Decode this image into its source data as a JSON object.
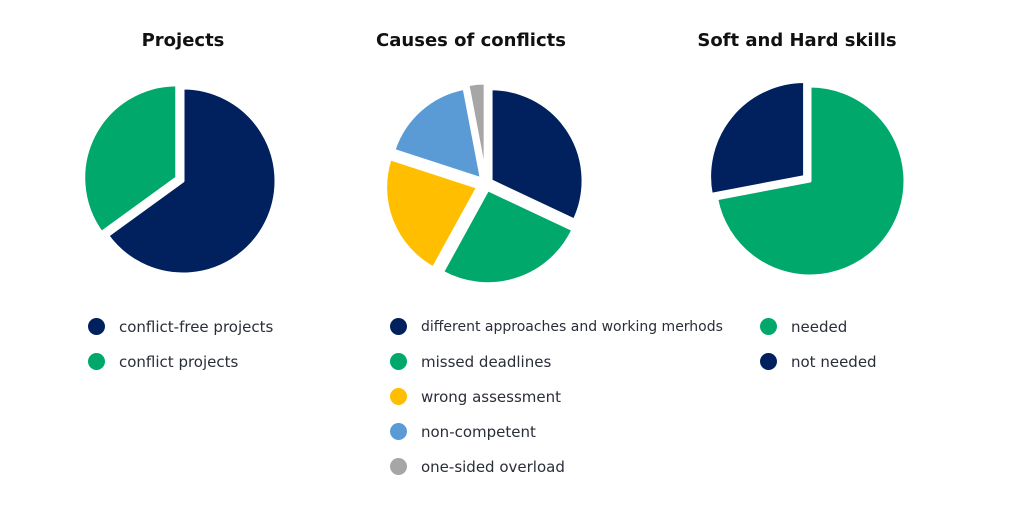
{
  "chart_data": [
    {
      "type": "pie",
      "title": "Projects",
      "slices": [
        {
          "label": "conflict-free projects",
          "value": 65,
          "color": "#00215e"
        },
        {
          "label": "conflict projects",
          "value": 35,
          "color": "#00a86b"
        }
      ]
    },
    {
      "type": "pie",
      "title": "Causes of conflicts",
      "slices": [
        {
          "label": "different approaches and working merhods",
          "value": 32,
          "color": "#00215e"
        },
        {
          "label": "missed deadlines",
          "value": 26,
          "color": "#00a86b"
        },
        {
          "label": "wrong assessment",
          "value": 22,
          "color": "#ffbf00"
        },
        {
          "label": "non-competent",
          "value": 17,
          "color": "#5b9bd5"
        },
        {
          "label": "one-sided overload",
          "value": 3,
          "color": "#a6a6a6"
        }
      ]
    },
    {
      "type": "pie",
      "title": "Soft and Hard skills",
      "slices": [
        {
          "label": "needed",
          "value": 72,
          "color": "#00a86b"
        },
        {
          "label": "not needed",
          "value": 28,
          "color": "#00215e"
        }
      ]
    }
  ]
}
